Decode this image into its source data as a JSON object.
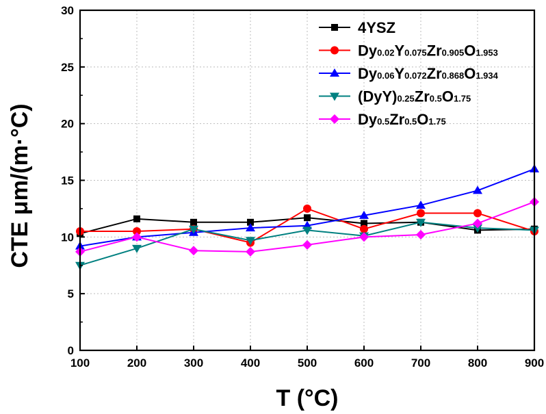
{
  "chart_data": {
    "type": "line",
    "xlabel": "T (°C)",
    "ylabel": "CTE μm/(m·°C)",
    "xlim": [
      100,
      900
    ],
    "ylim": [
      0,
      30
    ],
    "xticks": [
      100,
      200,
      300,
      400,
      500,
      600,
      700,
      800,
      900
    ],
    "yticks": [
      0,
      5,
      10,
      15,
      20,
      25,
      30
    ],
    "x": [
      100,
      200,
      300,
      400,
      500,
      600,
      700,
      800,
      900
    ],
    "grid": true,
    "legend_position": "top-right",
    "series": [
      {
        "name": "4YSZ",
        "name_parts": [
          {
            "t": "4YSZ",
            "sub": false
          }
        ],
        "color": "#000000",
        "marker": "square",
        "values": [
          10.3,
          11.6,
          11.3,
          11.3,
          11.7,
          11.2,
          11.3,
          10.6,
          10.7
        ]
      },
      {
        "name": "Dy0.02Y0.075Zr0.905O1.953",
        "name_parts": [
          {
            "t": "Dy",
            "sub": false
          },
          {
            "t": "0.02",
            "sub": true
          },
          {
            "t": "Y",
            "sub": false
          },
          {
            "t": "0.075",
            "sub": true
          },
          {
            "t": "Zr",
            "sub": false
          },
          {
            "t": "0.905",
            "sub": true
          },
          {
            "t": "O",
            "sub": false
          },
          {
            "t": "1.953",
            "sub": true
          }
        ],
        "color": "#ff0000",
        "marker": "circle",
        "values": [
          10.5,
          10.5,
          10.7,
          9.5,
          12.5,
          10.7,
          12.1,
          12.1,
          10.5
        ]
      },
      {
        "name": "Dy0.06Y0.072Zr0.868O1.934",
        "name_parts": [
          {
            "t": "Dy",
            "sub": false
          },
          {
            "t": "0.06",
            "sub": true
          },
          {
            "t": "Y",
            "sub": false
          },
          {
            "t": "0.072",
            "sub": true
          },
          {
            "t": "Zr",
            "sub": false
          },
          {
            "t": "0.868",
            "sub": true
          },
          {
            "t": "O",
            "sub": false
          },
          {
            "t": "1.934",
            "sub": true
          }
        ],
        "color": "#0000ff",
        "marker": "triangle-up",
        "values": [
          9.2,
          10.0,
          10.4,
          10.8,
          11.0,
          11.9,
          12.8,
          14.1,
          16.0
        ]
      },
      {
        "name": "(DyY)0.25Zr0.5O1.75",
        "name_parts": [
          {
            "t": "(DyY)",
            "sub": false
          },
          {
            "t": "0.25",
            "sub": true
          },
          {
            "t": "Zr",
            "sub": false
          },
          {
            "t": "0.5",
            "sub": true
          },
          {
            "t": "O",
            "sub": false
          },
          {
            "t": "1.75",
            "sub": true
          }
        ],
        "color": "#008080",
        "marker": "triangle-down",
        "values": [
          7.5,
          9.0,
          10.7,
          9.7,
          10.6,
          10.1,
          11.3,
          10.8,
          10.6
        ]
      },
      {
        "name": "Dy0.5Zr0.5O1.75",
        "name_parts": [
          {
            "t": "Dy",
            "sub": false
          },
          {
            "t": "0.5",
            "sub": true
          },
          {
            "t": "Zr",
            "sub": false
          },
          {
            "t": "0.5",
            "sub": true
          },
          {
            "t": "O",
            "sub": false
          },
          {
            "t": "1.75",
            "sub": true
          }
        ],
        "color": "#ff00ff",
        "marker": "diamond",
        "values": [
          8.7,
          10.0,
          8.8,
          8.7,
          9.3,
          10.0,
          10.2,
          11.2,
          13.1
        ]
      }
    ]
  }
}
